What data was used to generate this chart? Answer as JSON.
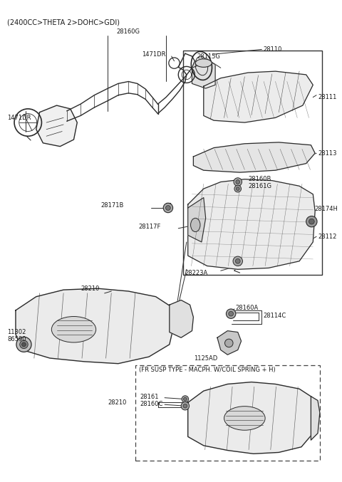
{
  "background_color": "#ffffff",
  "fig_width": 4.8,
  "fig_height": 6.77,
  "dpi": 100,
  "line_color": "#2a2a2a",
  "text_color": "#1a1a1a",
  "font_size_label": 6.0,
  "font_size_header": 7.0,
  "labels": {
    "top_header": "(2400CC>THETA 2>DOHC>GDI)",
    "28160G": "28160G",
    "1471DR_left": "1471DR",
    "1471DR_right": "1471DR",
    "28110": "28110",
    "28115G": "28115G",
    "28111": "28111",
    "28113": "28113",
    "28160B": "28160B",
    "28161G": "28161G",
    "28171B": "28171B",
    "28117F": "28117F",
    "28174H": "28174H",
    "28112": "28112",
    "28223A": "28223A",
    "11302": "11302",
    "86590": "86590",
    "28210": "28210",
    "28160A": "28160A",
    "28114C": "28114C",
    "1125AD": "1125AD",
    "fr_susp": "(FR SUSP TYPE - MACPH. W/COIL SPRING + H)",
    "28161": "28161",
    "28160C": "28160C",
    "28210b": "28210"
  }
}
